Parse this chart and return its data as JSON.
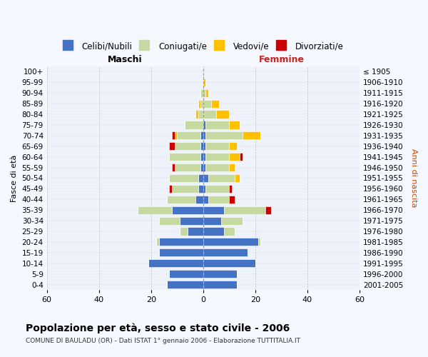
{
  "age_groups": [
    "100+",
    "95-99",
    "90-94",
    "85-89",
    "80-84",
    "75-79",
    "70-74",
    "65-69",
    "60-64",
    "55-59",
    "50-54",
    "45-49",
    "40-44",
    "35-39",
    "30-34",
    "25-29",
    "20-24",
    "15-19",
    "10-14",
    "5-9",
    "0-4"
  ],
  "birth_years": [
    "≤ 1905",
    "1906-1910",
    "1911-1915",
    "1916-1920",
    "1921-1925",
    "1926-1930",
    "1931-1935",
    "1936-1940",
    "1941-1945",
    "1946-1950",
    "1951-1955",
    "1956-1960",
    "1961-1965",
    "1966-1970",
    "1971-1975",
    "1976-1980",
    "1981-1985",
    "1986-1990",
    "1991-1995",
    "1996-2000",
    "2001-2005"
  ],
  "male": {
    "celibi": [
      0,
      0,
      0,
      0,
      0,
      0,
      1,
      1,
      1,
      1,
      2,
      2,
      3,
      12,
      9,
      6,
      17,
      17,
      21,
      13,
      14
    ],
    "coniugati": [
      0,
      0,
      1,
      1,
      2,
      7,
      9,
      10,
      12,
      10,
      11,
      10,
      11,
      13,
      8,
      3,
      1,
      0,
      0,
      0,
      0
    ],
    "vedovi": [
      0,
      0,
      0,
      1,
      1,
      0,
      1,
      0,
      0,
      0,
      0,
      0,
      0,
      0,
      0,
      0,
      0,
      0,
      0,
      0,
      0
    ],
    "divorziati": [
      0,
      0,
      0,
      0,
      0,
      0,
      1,
      2,
      0,
      1,
      0,
      1,
      0,
      0,
      0,
      0,
      0,
      0,
      0,
      0,
      0
    ]
  },
  "female": {
    "nubili": [
      0,
      0,
      0,
      0,
      0,
      1,
      1,
      1,
      1,
      1,
      2,
      1,
      2,
      8,
      7,
      8,
      21,
      17,
      20,
      13,
      13
    ],
    "coniugate": [
      0,
      0,
      1,
      3,
      5,
      9,
      14,
      9,
      9,
      9,
      10,
      9,
      8,
      16,
      8,
      4,
      1,
      0,
      0,
      0,
      0
    ],
    "vedove": [
      0,
      1,
      1,
      3,
      5,
      4,
      7,
      3,
      4,
      2,
      2,
      0,
      0,
      0,
      0,
      0,
      0,
      0,
      0,
      0,
      0
    ],
    "divorziate": [
      0,
      0,
      0,
      0,
      0,
      0,
      0,
      0,
      1,
      0,
      0,
      1,
      2,
      2,
      0,
      0,
      0,
      0,
      0,
      0,
      0
    ]
  },
  "colors": {
    "celibi": "#4472c4",
    "coniugati": "#c5d9a0",
    "vedovi": "#ffc000",
    "divorziati": "#cc0000"
  },
  "xlim": 60,
  "title": "Popolazione per età, sesso e stato civile - 2006",
  "subtitle": "COMUNE DI BAULADU (OR) - Dati ISTAT 1° gennaio 2006 - Elaborazione TUTTITALIA.IT",
  "ylabel_left": "Fasce di età",
  "ylabel_right": "Anni di nascita",
  "xlabel_left": "Maschi",
  "xlabel_right": "Femmine",
  "legend_labels": [
    "Celibi/Nubili",
    "Coniugati/e",
    "Vedovi/e",
    "Divorziati/e"
  ],
  "background_color": "#f5f8ff",
  "plot_bg": "#eef2fa"
}
